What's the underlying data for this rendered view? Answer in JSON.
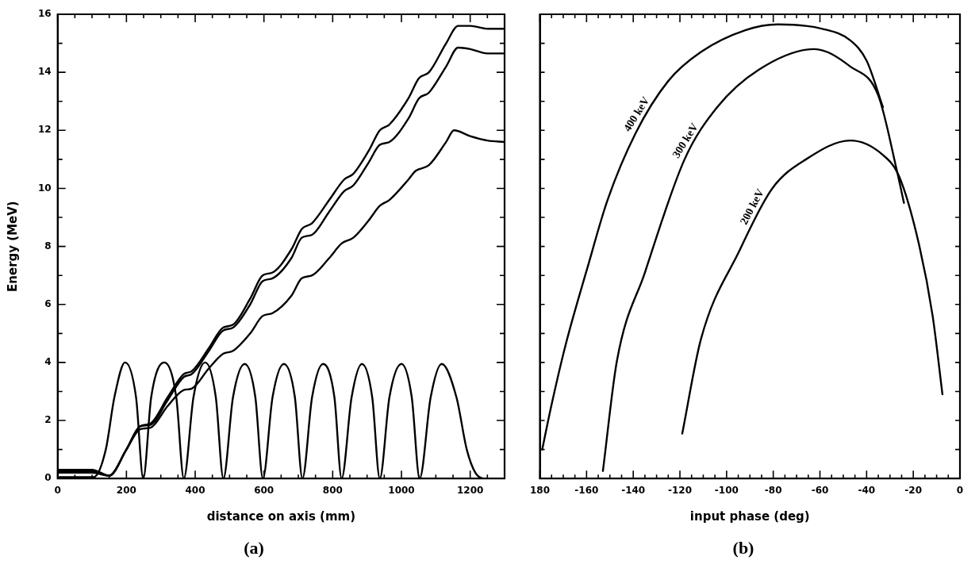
{
  "chart_data": [
    {
      "type": "line",
      "title": "(a)",
      "xlabel": "distance on axis (mm)",
      "ylabel": "Energy (MeV)",
      "marker": "none",
      "xlim": [
        0,
        1300
      ],
      "ylim": [
        0,
        16
      ],
      "xticks": [
        0,
        {
          "value": 50,
          "label": null
        },
        {
          "value": 100,
          "label": null
        },
        {
          "value": 150,
          "label": null
        },
        200,
        {
          "value": 250,
          "label": null
        },
        {
          "value": 300,
          "label": null
        },
        {
          "value": 350,
          "label": null
        },
        400,
        {
          "value": 450,
          "label": null
        },
        {
          "value": 500,
          "label": null
        },
        {
          "value": 550,
          "label": null
        },
        600,
        {
          "value": 650,
          "label": null
        },
        {
          "value": 700,
          "label": null
        },
        {
          "value": 750,
          "label": null
        },
        800,
        {
          "value": 850,
          "label": null
        },
        {
          "value": 900,
          "label": null
        },
        {
          "value": 950,
          "label": null
        },
        1000,
        {
          "value": 1050,
          "label": null
        },
        {
          "value": 1100,
          "label": null
        },
        {
          "value": 1150,
          "label": null
        },
        1200,
        {
          "value": 1250,
          "label": null
        },
        {
          "value": 1300,
          "label": null
        }
      ],
      "yticks": [
        0,
        {
          "value": 1,
          "label": null
        },
        2,
        {
          "value": 3,
          "label": null
        },
        4,
        {
          "value": 5,
          "label": null
        },
        6,
        {
          "value": 7,
          "label": null
        },
        8,
        {
          "value": 9,
          "label": null
        },
        10,
        {
          "value": 11,
          "label": null
        },
        12,
        {
          "value": 13,
          "label": null
        },
        14,
        {
          "value": 15,
          "label": null
        },
        16
      ],
      "series": [
        {
          "color": "#000000",
          "x": [
            0,
            100,
            150,
            200,
            240,
            270,
            320,
            367,
            390,
            440,
            481,
            510,
            560,
            596,
            625,
            680,
            710,
            740,
            790,
            833,
            860,
            905,
            937,
            965,
            1020,
            1051,
            1080,
            1130,
            1165,
            1200,
            1250,
            1300
          ],
          "values": [
            0.3,
            0.3,
            0.1,
            1.0,
            1.8,
            1.9,
            2.8,
            3.6,
            3.7,
            4.5,
            5.2,
            5.3,
            6.2,
            7.0,
            7.1,
            7.9,
            8.6,
            8.8,
            9.6,
            10.3,
            10.5,
            11.3,
            12.0,
            12.2,
            13.1,
            13.8,
            14.0,
            15.0,
            15.6,
            15.6,
            15.5,
            15.5
          ]
        },
        {
          "color": "#000000",
          "x": [
            0,
            100,
            150,
            200,
            240,
            270,
            320,
            367,
            390,
            440,
            481,
            510,
            560,
            596,
            625,
            680,
            710,
            740,
            790,
            833,
            860,
            905,
            937,
            965,
            1020,
            1051,
            1080,
            1130,
            1165,
            1200,
            1250,
            1300
          ],
          "values": [
            0.25,
            0.25,
            0.1,
            1.0,
            1.8,
            1.85,
            2.7,
            3.5,
            3.6,
            4.4,
            5.1,
            5.2,
            6.0,
            6.8,
            6.9,
            7.6,
            8.3,
            8.4,
            9.2,
            9.9,
            10.1,
            10.9,
            11.5,
            11.6,
            12.4,
            13.1,
            13.3,
            14.2,
            14.85,
            14.8,
            14.65,
            14.65
          ]
        },
        {
          "color": "#000000",
          "x": [
            0,
            100,
            150,
            200,
            240,
            270,
            320,
            367,
            390,
            440,
            481,
            510,
            560,
            596,
            625,
            680,
            710,
            740,
            790,
            826,
            860,
            905,
            937,
            965,
            1020,
            1041,
            1080,
            1130,
            1153,
            1200,
            1250,
            1300
          ],
          "values": [
            0.2,
            0.2,
            0.1,
            1.0,
            1.7,
            1.75,
            2.5,
            3.05,
            3.1,
            3.8,
            4.3,
            4.4,
            5.0,
            5.6,
            5.7,
            6.3,
            6.9,
            7.0,
            7.6,
            8.1,
            8.3,
            8.9,
            9.4,
            9.6,
            10.3,
            10.6,
            10.8,
            11.6,
            12.0,
            11.8,
            11.65,
            11.6
          ]
        },
        {
          "color": "#000000",
          "x": [
            0,
            105,
            140,
            165,
            196,
            228,
            249,
            272,
            310,
            345,
            367,
            395,
            429,
            460,
            482,
            510,
            544,
            575,
            597,
            625,
            658,
            690,
            712,
            740,
            772,
            805,
            826,
            855,
            885,
            915,
            937,
            965,
            1000,
            1030,
            1053,
            1085,
            1117,
            1160,
            1190,
            1215,
            1240,
            1260
          ],
          "values": [
            0.05,
            0.05,
            1.0,
            2.8,
            4.0,
            2.8,
            0,
            2.8,
            4.0,
            2.8,
            0,
            2.8,
            4.0,
            2.8,
            0,
            2.8,
            3.95,
            2.8,
            0,
            2.8,
            3.95,
            2.8,
            0,
            2.8,
            3.95,
            2.8,
            0,
            2.8,
            3.95,
            2.8,
            0,
            2.8,
            3.95,
            2.8,
            0,
            2.8,
            3.95,
            2.8,
            1.0,
            0.2,
            0,
            0
          ]
        }
      ]
    },
    {
      "type": "line",
      "title": "(b)",
      "xlabel": "input phase (deg)",
      "marker": "none",
      "tick_labels": "x",
      "xlim": [
        -180,
        0
      ],
      "ylim": [
        0,
        16
      ],
      "xticks": [
        {
          "value": -180,
          "label": "180"
        },
        {
          "value": -175,
          "label": null
        },
        {
          "value": -170,
          "label": null
        },
        {
          "value": -165,
          "label": null
        },
        -160,
        {
          "value": -155,
          "label": null
        },
        {
          "value": -150,
          "label": null
        },
        {
          "value": -145,
          "label": null
        },
        -140,
        {
          "value": -135,
          "label": null
        },
        {
          "value": -130,
          "label": null
        },
        {
          "value": -125,
          "label": null
        },
        -120,
        {
          "value": -115,
          "label": null
        },
        {
          "value": -110,
          "label": null
        },
        {
          "value": -105,
          "label": null
        },
        -100,
        {
          "value": -95,
          "label": null
        },
        {
          "value": -90,
          "label": null
        },
        {
          "value": -85,
          "label": null
        },
        -80,
        {
          "value": -75,
          "label": null
        },
        {
          "value": -70,
          "label": null
        },
        {
          "value": -65,
          "label": null
        },
        -60,
        {
          "value": -55,
          "label": null
        },
        {
          "value": -50,
          "label": null
        },
        {
          "value": -45,
          "label": null
        },
        -40,
        {
          "value": -35,
          "label": null
        },
        {
          "value": -30,
          "label": null
        },
        {
          "value": -25,
          "label": null
        },
        -20,
        {
          "value": -15,
          "label": null
        },
        {
          "value": -10,
          "label": null
        },
        {
          "value": -5,
          "label": null
        },
        0
      ],
      "yticks": [
        {
          "value": 0,
          "label": null
        },
        {
          "value": 1,
          "label": null
        },
        {
          "value": 2,
          "label": null
        },
        {
          "value": 3,
          "label": null
        },
        {
          "value": 4,
          "label": null
        },
        {
          "value": 5,
          "label": null
        },
        {
          "value": 6,
          "label": null
        },
        {
          "value": 7,
          "label": null
        },
        {
          "value": 8,
          "label": null
        },
        {
          "value": 9,
          "label": null
        },
        {
          "value": 10,
          "label": null
        },
        {
          "value": 11,
          "label": null
        },
        {
          "value": 12,
          "label": null
        },
        {
          "value": 13,
          "label": null
        },
        {
          "value": 14,
          "label": null
        },
        {
          "value": 15,
          "label": null
        },
        {
          "value": 16,
          "label": null
        }
      ],
      "series": [
        {
          "name": "400 keV",
          "color": "#000000",
          "x": [
            -179,
            -175.4,
            -169,
            -159.5,
            -151,
            -139,
            -125,
            -111,
            -92,
            -78,
            -59,
            -47,
            -40,
            -33
          ],
          "values": [
            1.0,
            2.4,
            4.6,
            7.3,
            9.6,
            11.9,
            13.7,
            14.7,
            15.45,
            15.65,
            15.5,
            15.1,
            14.4,
            12.8
          ]
        },
        {
          "name": "300 keV",
          "color": "#000000",
          "x": [
            -153,
            -147,
            -135,
            -118,
            -104,
            -86,
            -62.5,
            -47,
            -35,
            -27,
            -24
          ],
          "values": [
            0.26,
            4.05,
            7.1,
            11.0,
            12.8,
            14.1,
            14.8,
            14.2,
            13.2,
            10.6,
            9.5
          ]
        },
        {
          "name": "200 keV",
          "color": "#000000",
          "x": [
            -119,
            -111,
            -94.5,
            -80.4,
            -66,
            -47,
            -33,
            -26,
            -17.5,
            -11.7,
            -7.5
          ],
          "values": [
            1.55,
            4.8,
            7.85,
            10.0,
            11.0,
            11.65,
            11.15,
            10.4,
            8.05,
            5.6,
            2.9
          ]
        }
      ]
    }
  ]
}
